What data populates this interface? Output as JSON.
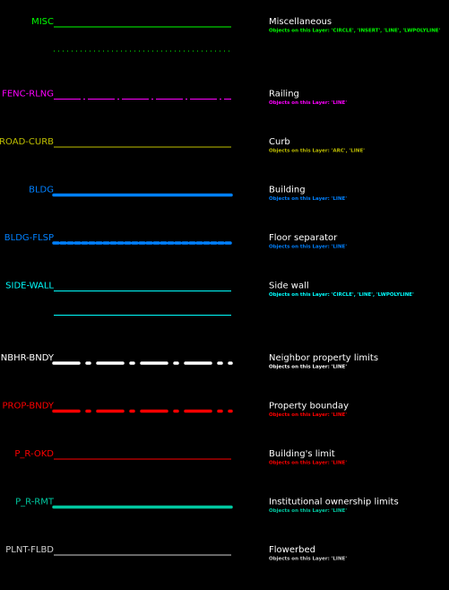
{
  "layers": [
    {
      "name": "MISC",
      "color": "#00ff00",
      "lines": [
        {
          "style": "solid",
          "weight": "thin"
        },
        {
          "style": "dotted",
          "weight": "thin"
        }
      ],
      "description": "Miscellaneous",
      "objects": "Objects on this Layer: 'CIRCLE', 'INSERT', 'LINE', 'LWPOLYLINE'"
    },
    {
      "name": "FENC-RLNG",
      "color": "#ff00ff",
      "lines": [
        {
          "style": "fence",
          "weight": "thin"
        }
      ],
      "description": "Railing",
      "objects": "Objects on this Layer: 'LINE'"
    },
    {
      "name": "ROAD-CURB",
      "color": "#bfbf00",
      "lines": [
        {
          "style": "solid",
          "weight": "thin"
        }
      ],
      "description": "Curb",
      "objects": "Objects on this Layer: 'ARC', 'LINE'"
    },
    {
      "name": "BLDG",
      "color": "#0080ff",
      "lines": [
        {
          "style": "solid",
          "weight": "thick"
        }
      ],
      "description": "Building",
      "objects": "Objects on this Layer: 'LINE'"
    },
    {
      "name": "BLDG-FLSP",
      "color": "#0080ff",
      "lines": [
        {
          "style": "dashed",
          "weight": "thick"
        }
      ],
      "description": "Floor separator",
      "objects": "Objects on this Layer: 'LINE'"
    },
    {
      "name": "SIDE-WALL",
      "color": "#00ffff",
      "lines": [
        {
          "style": "solid",
          "weight": "thin"
        },
        {
          "style": "solid",
          "weight": "thin"
        }
      ],
      "description": "Side wall",
      "objects": "Objects on this Layer: 'CIRCLE', 'LINE', 'LWPOLYLINE'"
    },
    {
      "name": "NBHR-BNDY",
      "color": "#ffffff",
      "lines": [
        {
          "style": "dashdot",
          "weight": "thick"
        }
      ],
      "description": "Neighbor property limits",
      "objects": "Objects on this Layer: 'LINE'"
    },
    {
      "name": "PROP-BNDY",
      "color": "#ff0000",
      "lines": [
        {
          "style": "dashdot",
          "weight": "thick"
        }
      ],
      "description": "Property bounday",
      "objects": "Objects on this Layer: 'LINE'"
    },
    {
      "name": "P_R-OKD",
      "color": "#ff0000",
      "lines": [
        {
          "style": "solid",
          "weight": "thin"
        }
      ],
      "description": "Building's limit",
      "objects": "Objects on this Layer: 'LINE'"
    },
    {
      "name": "P_R-RMT",
      "color": "#00c8a0",
      "lines": [
        {
          "style": "solid",
          "weight": "thick"
        }
      ],
      "description": "Institutional ownership limits",
      "objects": "Objects on this Layer: 'LINE'"
    },
    {
      "name": "PLNT-FLBD",
      "color": "#d0d0d0",
      "lines": [
        {
          "style": "solid",
          "weight": "thin"
        }
      ],
      "description": "Flowerbed",
      "objects": "Objects on this Layer: 'LINE'"
    }
  ]
}
